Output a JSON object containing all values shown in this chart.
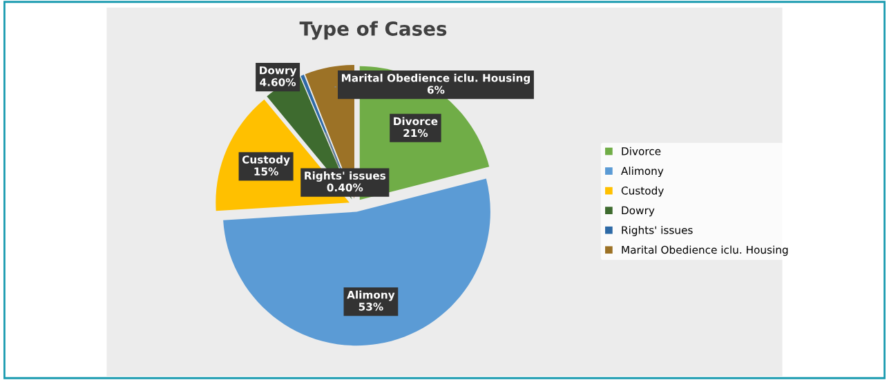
{
  "chart_data": {
    "type": "pie",
    "title": "Type of Cases",
    "categories": [
      "Divorce",
      "Alimony",
      "Custody",
      "Dowry",
      "Rights' issues",
      "Marital Obedience iclu. Housing"
    ],
    "values": [
      21,
      53,
      15,
      4.6,
      0.4,
      6
    ],
    "value_labels": [
      "21%",
      "53%",
      "15%",
      "4.60%",
      "0.40%",
      "6%"
    ],
    "colors": [
      "#70ad47",
      "#5b9bd5",
      "#ffc000",
      "#3e6b2f",
      "#2e6aa6",
      "#9c7226"
    ],
    "legend": "right"
  }
}
